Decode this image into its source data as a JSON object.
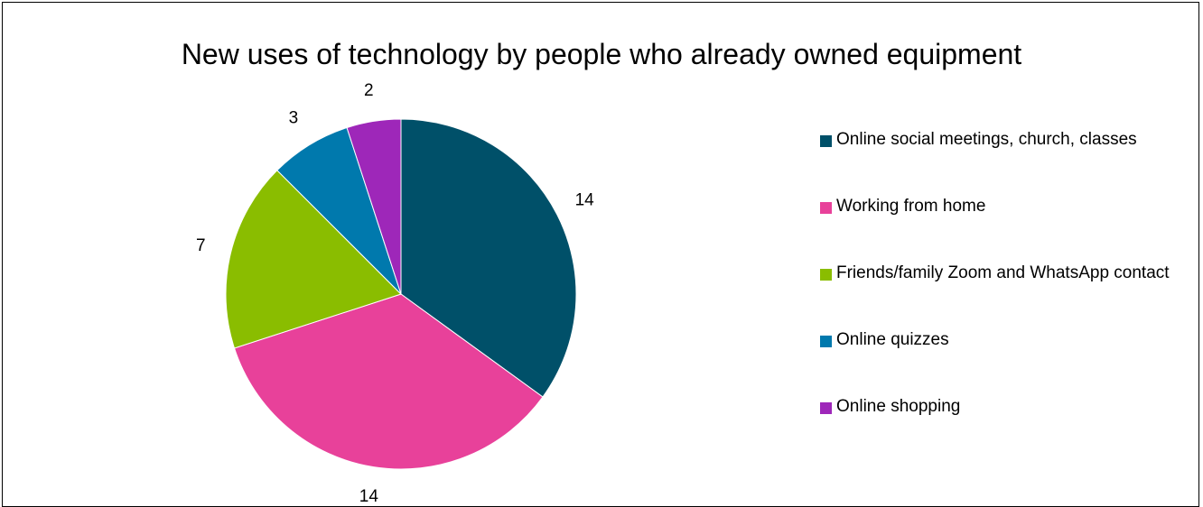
{
  "chart_data": {
    "type": "pie",
    "title": "New uses of technology by people who already owned equipment",
    "categories": [
      "Online social meetings, church, classes",
      "Working from home",
      "Friends/family Zoom and WhatsApp contact",
      "Online quizzes",
      "Online shopping"
    ],
    "values": [
      14,
      14,
      7,
      3,
      2
    ],
    "colors": [
      "#005069",
      "#E8419A",
      "#8ABD00",
      "#0079AD",
      "#9E27B9"
    ],
    "data_labels": [
      "14",
      "14",
      "7",
      "3",
      "2"
    ],
    "legend_position": "right",
    "start_angle": "12 o'clock, clockwise"
  }
}
